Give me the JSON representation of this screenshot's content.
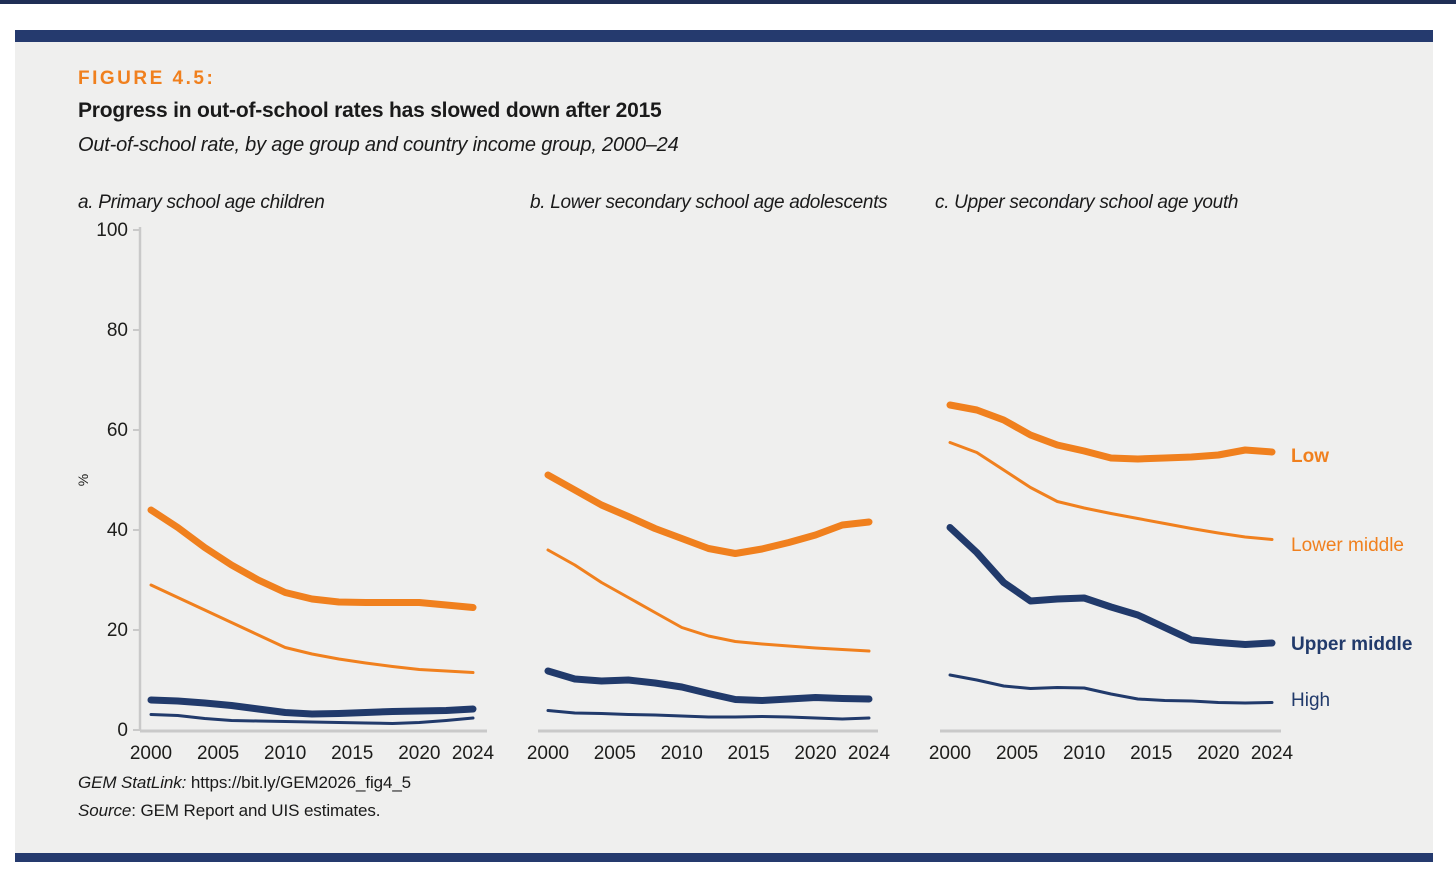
{
  "figure": {
    "label": "FIGURE 4.5:",
    "title": "Progress in out-of-school rates has slowed down after 2015",
    "subtitle": "Out-of-school rate, by age group and country income group, 2000–24",
    "footer": {
      "statlink_label": "GEM StatLink:",
      "statlink_url": "https://bit.ly/GEM2026_fig4_5",
      "source_label": "Source",
      "source_rest": ": GEM Report and UIS estimates."
    }
  },
  "colors": {
    "orange": "#f0801e",
    "navy": "#213a6b",
    "bar_navy": "#253a6e",
    "figure_bg": "#efefee",
    "axis_gray": "#c9c9c9",
    "text_dark": "#1d1d1b"
  },
  "legend": [
    {
      "label": "Low",
      "color": "orange",
      "bold": true
    },
    {
      "label": "Lower middle",
      "color": "orange",
      "bold": false
    },
    {
      "label": "Upper middle",
      "color": "navy",
      "bold": true
    },
    {
      "label": "High",
      "color": "navy",
      "bold": false
    }
  ],
  "chart_data": [
    {
      "id": "a",
      "type": "line",
      "title": "a. Primary school age children",
      "ylabel": "%",
      "ylim": [
        0,
        100
      ],
      "yticks": [
        0,
        20,
        40,
        60,
        80,
        100
      ],
      "xticks": [
        2000,
        2005,
        2010,
        2015,
        2020,
        2024
      ],
      "x": [
        2000,
        2002,
        2004,
        2006,
        2008,
        2010,
        2012,
        2014,
        2016,
        2018,
        2020,
        2022,
        2024
      ],
      "series": [
        {
          "name": "Low",
          "color": "orange",
          "thick": true,
          "values": [
            44,
            40.5,
            36.5,
            33,
            30,
            27.5,
            26.2,
            25.6,
            25.5,
            25.5,
            25.5,
            25,
            24.5
          ]
        },
        {
          "name": "Lower middle",
          "color": "orange",
          "thick": false,
          "values": [
            29,
            26.5,
            24,
            21.5,
            19,
            16.5,
            15.2,
            14.2,
            13.4,
            12.7,
            12.1,
            11.8,
            11.5
          ]
        },
        {
          "name": "Upper middle",
          "color": "navy",
          "thick": true,
          "values": [
            6,
            5.8,
            5.4,
            4.9,
            4.2,
            3.5,
            3.2,
            3.3,
            3.5,
            3.7,
            3.8,
            3.9,
            4.2
          ]
        },
        {
          "name": "High",
          "color": "navy",
          "thick": false,
          "values": [
            3.1,
            2.9,
            2.3,
            1.9,
            1.8,
            1.7,
            1.6,
            1.5,
            1.4,
            1.3,
            1.5,
            1.9,
            2.4
          ]
        }
      ]
    },
    {
      "id": "b",
      "type": "line",
      "title": "b. Lower secondary school age adolescents",
      "ylabel": "",
      "ylim": [
        0,
        100
      ],
      "yticks": [],
      "xticks": [
        2000,
        2005,
        2010,
        2015,
        2020,
        2024
      ],
      "x": [
        2000,
        2002,
        2004,
        2006,
        2008,
        2010,
        2012,
        2014,
        2016,
        2018,
        2020,
        2022,
        2024
      ],
      "series": [
        {
          "name": "Low",
          "color": "orange",
          "thick": true,
          "values": [
            51,
            48,
            45,
            42.7,
            40.3,
            38.3,
            36.3,
            35.3,
            36.2,
            37.5,
            39,
            41,
            41.6
          ]
        },
        {
          "name": "Lower middle",
          "color": "orange",
          "thick": false,
          "values": [
            36,
            33,
            29.5,
            26.5,
            23.5,
            20.5,
            18.8,
            17.7,
            17.2,
            16.8,
            16.4,
            16.1,
            15.8
          ]
        },
        {
          "name": "Upper middle",
          "color": "navy",
          "thick": true,
          "values": [
            11.8,
            10.2,
            9.8,
            10,
            9.4,
            8.6,
            7.3,
            6.1,
            5.9,
            6.2,
            6.5,
            6.3,
            6.2
          ]
        },
        {
          "name": "High",
          "color": "navy",
          "thick": false,
          "values": [
            3.9,
            3.4,
            3.3,
            3.1,
            3.0,
            2.8,
            2.6,
            2.6,
            2.7,
            2.6,
            2.4,
            2.2,
            2.4
          ]
        }
      ]
    },
    {
      "id": "c",
      "type": "line",
      "title": "c. Upper secondary school age youth",
      "ylabel": "",
      "ylim": [
        0,
        100
      ],
      "yticks": [],
      "xticks": [
        2000,
        2005,
        2010,
        2015,
        2020,
        2024
      ],
      "x": [
        2000,
        2002,
        2004,
        2006,
        2008,
        2010,
        2012,
        2014,
        2016,
        2018,
        2020,
        2022,
        2024
      ],
      "series": [
        {
          "name": "Low",
          "color": "orange",
          "thick": true,
          "values": [
            65,
            64,
            62,
            59,
            57,
            55.8,
            54.4,
            54.2,
            54.4,
            54.6,
            55,
            56,
            55.6
          ]
        },
        {
          "name": "Lower middle",
          "color": "orange",
          "thick": false,
          "values": [
            57.5,
            55.5,
            52,
            48.5,
            45.7,
            44.4,
            43.3,
            42.3,
            41.3,
            40.3,
            39.4,
            38.6,
            38.1
          ]
        },
        {
          "name": "Upper middle",
          "color": "navy",
          "thick": true,
          "values": [
            40.5,
            35.5,
            29.5,
            25.8,
            26.2,
            26.4,
            24.6,
            23,
            20.5,
            18,
            17.5,
            17.1,
            17.4
          ]
        },
        {
          "name": "High",
          "color": "navy",
          "thick": false,
          "values": [
            11,
            10,
            8.8,
            8.3,
            8.5,
            8.4,
            7.2,
            6.2,
            5.9,
            5.8,
            5.5,
            5.4,
            5.5
          ]
        }
      ]
    }
  ]
}
